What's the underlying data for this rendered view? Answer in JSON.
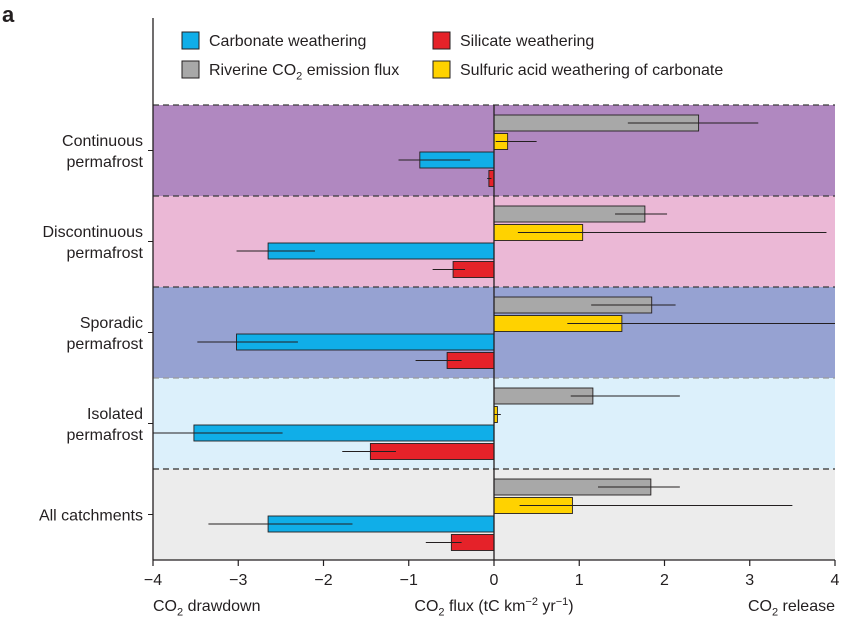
{
  "panel_label": "a",
  "chart_data": {
    "type": "bar",
    "orientation": "horizontal",
    "categories": [
      {
        "label_lines": [
          "Continuous",
          "permafrost"
        ],
        "band_color": "#b088c0"
      },
      {
        "label_lines": [
          "Discontinuous",
          "permafrost"
        ],
        "band_color": "#ebb8d6"
      },
      {
        "label_lines": [
          "Sporadic",
          "permafrost"
        ],
        "band_color": "#96a2d2"
      },
      {
        "label_lines": [
          "Isolated",
          "permafrost"
        ],
        "band_color": "#dcf0fb"
      },
      {
        "label_lines": [
          "All catchments"
        ],
        "band_color": "#ececec"
      }
    ],
    "series": [
      {
        "name": "Riverine CO₂ emission flux",
        "name_parts": [
          "Riverine CO",
          "2",
          " emission flux"
        ],
        "color": "#a8a8a8",
        "values": [
          2.4,
          1.77,
          1.85,
          1.16,
          1.84
        ],
        "error": [
          [
            1.57,
            3.1
          ],
          [
            1.42,
            2.03
          ],
          [
            1.14,
            2.13
          ],
          [
            0.9,
            2.18
          ],
          [
            1.22,
            2.18
          ]
        ]
      },
      {
        "name": "Sulfuric acid weathering of carbonate",
        "name_parts": [
          "Sulfuric acid weathering of carbonate"
        ],
        "color": "#ffd200",
        "values": [
          0.16,
          1.04,
          1.5,
          0.04,
          0.92
        ],
        "error": [
          [
            0.02,
            0.5
          ],
          [
            0.28,
            3.9
          ],
          [
            0.86,
            4.0
          ],
          [
            0.0,
            0.08
          ],
          [
            0.3,
            3.5
          ]
        ]
      },
      {
        "name": "Carbonate weathering",
        "name_parts": [
          "Carbonate weathering"
        ],
        "color": "#10aee8",
        "values": [
          -0.87,
          -2.65,
          -3.02,
          -3.52,
          -2.65
        ],
        "error": [
          [
            -1.12,
            -0.28
          ],
          [
            -3.02,
            -2.1
          ],
          [
            -3.48,
            -2.3
          ],
          [
            -4.0,
            -2.48
          ],
          [
            -3.35,
            -1.66
          ]
        ]
      },
      {
        "name": "Silicate weathering",
        "name_parts": [
          "Silicate weathering"
        ],
        "color": "#e52229",
        "values": [
          -0.06,
          -0.48,
          -0.55,
          -1.45,
          -0.5
        ],
        "error": [
          [
            -0.08,
            -0.03
          ],
          [
            -0.72,
            -0.34
          ],
          [
            -0.92,
            -0.38
          ],
          [
            -1.78,
            -1.15
          ],
          [
            -0.8,
            -0.38
          ]
        ]
      }
    ],
    "legend_order": [
      2,
      0,
      3,
      1
    ],
    "x": {
      "min": -4,
      "max": 4,
      "ticks": [
        -4,
        -3,
        -2,
        -1,
        0,
        1,
        2,
        3,
        4
      ],
      "tick_labels": [
        "−4",
        "−3",
        "−2",
        "−1",
        "0",
        "1",
        "2",
        "3",
        "4"
      ]
    },
    "xlabel_parts": [
      "CO",
      "2",
      " flux (tC km",
      "−2",
      " yr",
      "−1",
      ")"
    ],
    "left_note_parts": [
      "CO",
      "2",
      " drawdown"
    ],
    "right_note_parts": [
      "CO",
      "2",
      " release"
    ]
  }
}
